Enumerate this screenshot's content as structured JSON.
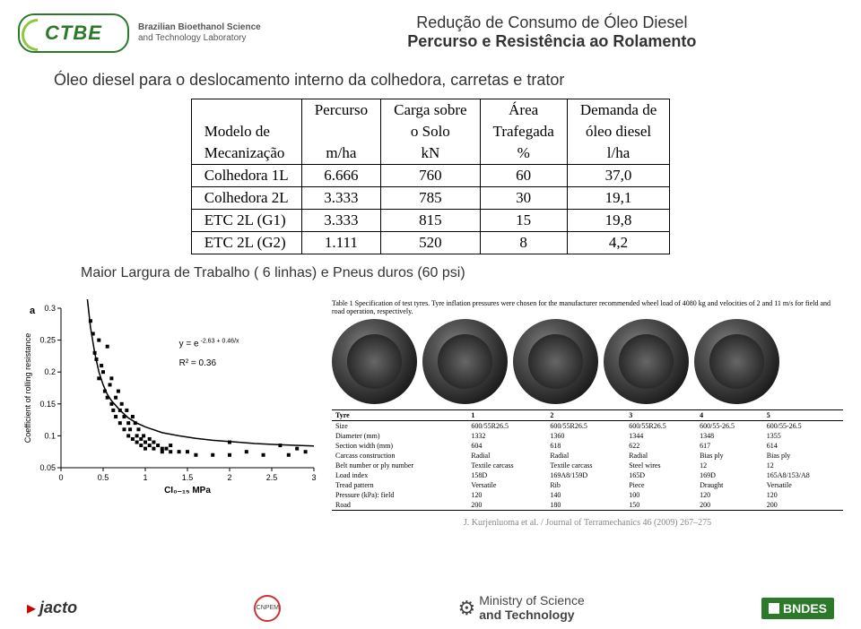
{
  "header": {
    "logo_text": "CTBE",
    "lab_line1": "Brazilian Bioethanol Science",
    "lab_line2": "and Technology Laboratory",
    "title_line1": "Redução de Consumo de Óleo Diesel",
    "title_line2": "Percurso e Resistência ao Rolamento"
  },
  "subtitle": "Óleo diesel para o deslocamento interno da colhedora, carretas e trator",
  "main_table": {
    "header_rows": [
      [
        "",
        "Percurso",
        "Carga sobre",
        "Área",
        "Demanda de"
      ],
      [
        "Modelo de",
        "",
        "o Solo",
        "Trafegada",
        "óleo diesel"
      ],
      [
        "Mecanização",
        "m/ha",
        "kN",
        "%",
        "l/ha"
      ]
    ],
    "rows": [
      [
        "Colhedora 1L",
        "6.666",
        "760",
        "60",
        "37,0"
      ],
      [
        "Colhedora 2L",
        "3.333",
        "785",
        "30",
        "19,1"
      ],
      [
        "ETC 2L (G1)",
        "3.333",
        "815",
        "15",
        "19,8"
      ],
      [
        "ETC 2L (G2)",
        "1.111",
        "520",
        "8",
        "4,2"
      ]
    ]
  },
  "table_note": "Maior Largura de Trabalho ( 6 linhas) e Pneus duros (60 psi)",
  "chart": {
    "type": "scatter",
    "panel_label": "a",
    "ylabel": "Coefficient of rolling resistance",
    "xlabel": "CI₀₋₁₅ MPa",
    "xlim": [
      0,
      3
    ],
    "ylim": [
      0.05,
      0.3
    ],
    "xticks": [
      0,
      0.5,
      1,
      1.5,
      2,
      2.5,
      3
    ],
    "yticks": [
      0.05,
      0.1,
      0.15,
      0.2,
      0.25,
      0.3
    ],
    "fit_text1": "y = e",
    "fit_exp": "-2.63 + 0.46/x",
    "fit_text2": "R² = 0.36",
    "curve_color": "#000000",
    "marker_color": "#000000",
    "marker_size": 4,
    "background": "#ffffff",
    "axis_color": "#000000",
    "label_fontsize": 9,
    "points": [
      [
        0.35,
        0.28
      ],
      [
        0.38,
        0.26
      ],
      [
        0.4,
        0.23
      ],
      [
        0.42,
        0.22
      ],
      [
        0.45,
        0.25
      ],
      [
        0.45,
        0.19
      ],
      [
        0.48,
        0.21
      ],
      [
        0.5,
        0.2
      ],
      [
        0.52,
        0.17
      ],
      [
        0.55,
        0.24
      ],
      [
        0.55,
        0.16
      ],
      [
        0.58,
        0.18
      ],
      [
        0.6,
        0.15
      ],
      [
        0.6,
        0.19
      ],
      [
        0.62,
        0.14
      ],
      [
        0.65,
        0.16
      ],
      [
        0.65,
        0.13
      ],
      [
        0.68,
        0.17
      ],
      [
        0.7,
        0.14
      ],
      [
        0.7,
        0.12
      ],
      [
        0.72,
        0.15
      ],
      [
        0.75,
        0.13
      ],
      [
        0.75,
        0.11
      ],
      [
        0.78,
        0.14
      ],
      [
        0.8,
        0.12
      ],
      [
        0.8,
        0.1
      ],
      [
        0.82,
        0.11
      ],
      [
        0.85,
        0.13
      ],
      [
        0.85,
        0.095
      ],
      [
        0.88,
        0.12
      ],
      [
        0.9,
        0.1
      ],
      [
        0.9,
        0.09
      ],
      [
        0.92,
        0.11
      ],
      [
        0.95,
        0.095
      ],
      [
        0.95,
        0.085
      ],
      [
        0.98,
        0.1
      ],
      [
        1.0,
        0.09
      ],
      [
        1.0,
        0.08
      ],
      [
        1.05,
        0.095
      ],
      [
        1.05,
        0.085
      ],
      [
        1.1,
        0.09
      ],
      [
        1.1,
        0.08
      ],
      [
        1.15,
        0.085
      ],
      [
        1.2,
        0.08
      ],
      [
        1.2,
        0.075
      ],
      [
        1.25,
        0.08
      ],
      [
        1.3,
        0.075
      ],
      [
        1.3,
        0.085
      ],
      [
        1.4,
        0.075
      ],
      [
        1.5,
        0.075
      ],
      [
        1.6,
        0.07
      ],
      [
        1.8,
        0.07
      ],
      [
        2.0,
        0.07
      ],
      [
        2.0,
        0.09
      ],
      [
        2.2,
        0.075
      ],
      [
        2.4,
        0.07
      ],
      [
        2.6,
        0.085
      ],
      [
        2.8,
        0.08
      ],
      [
        2.9,
        0.075
      ],
      [
        2.7,
        0.07
      ]
    ],
    "curve": [
      [
        0.3,
        0.33
      ],
      [
        0.35,
        0.27
      ],
      [
        0.4,
        0.23
      ],
      [
        0.45,
        0.2
      ],
      [
        0.5,
        0.18
      ],
      [
        0.55,
        0.165
      ],
      [
        0.6,
        0.155
      ],
      [
        0.7,
        0.14
      ],
      [
        0.8,
        0.128
      ],
      [
        0.9,
        0.12
      ],
      [
        1.0,
        0.114
      ],
      [
        1.2,
        0.105
      ],
      [
        1.4,
        0.1
      ],
      [
        1.6,
        0.096
      ],
      [
        1.8,
        0.093
      ],
      [
        2.0,
        0.091
      ],
      [
        2.3,
        0.088
      ],
      [
        2.6,
        0.086
      ],
      [
        3.0,
        0.084
      ]
    ]
  },
  "tyre_caption": "Table 1\nSpecification of test tyres. Tyre inflation pressures were chosen for the manufacturer recommended wheel load of 4080 kg and velocities of 2 and 11 m/s for field and road operation, respectively.",
  "tyre_numbers": [
    "1",
    "2",
    "3",
    "4",
    "5"
  ],
  "spec_table": {
    "columns": [
      "Tyre",
      "1",
      "2",
      "3",
      "4",
      "5"
    ],
    "rows": [
      [
        "Size",
        "600/55R26.5",
        "600/55R26.5",
        "600/55R26.5",
        "600/55-26.5",
        "600/55-26.5"
      ],
      [
        "Diameter (mm)",
        "1332",
        "1360",
        "1344",
        "1348",
        "1355"
      ],
      [
        "Section width (mm)",
        "604",
        "618",
        "622",
        "617",
        "614"
      ],
      [
        "Carcass construction",
        "Radial",
        "Radial",
        "Radial",
        "Bias ply",
        "Bias ply"
      ],
      [
        "Belt number or ply number",
        "Textile carcass",
        "Textile carcass",
        "Steel wires",
        "12",
        "12"
      ],
      [
        "Load index",
        "158D",
        "169A8/159D",
        "165D",
        "169D",
        "165A8/153/A8"
      ],
      [
        "Tread pattern",
        "Versatile",
        "Rib",
        "Piece",
        "Draught",
        "Versatile"
      ],
      [
        "Pressure (kPa): field",
        "120",
        "140",
        "100",
        "120",
        "120"
      ],
      [
        "Road",
        "200",
        "180",
        "150",
        "200",
        "200"
      ]
    ]
  },
  "citation": "J. Kurjenluoma et al. / Journal of Terramechanics 46 (2009) 267–275",
  "footer": {
    "jacto": "jacto",
    "cnpem": "CNPEM",
    "ministry_l1": "Ministry of Science",
    "ministry_l2": "and Technology",
    "bndes": "BNDES"
  }
}
